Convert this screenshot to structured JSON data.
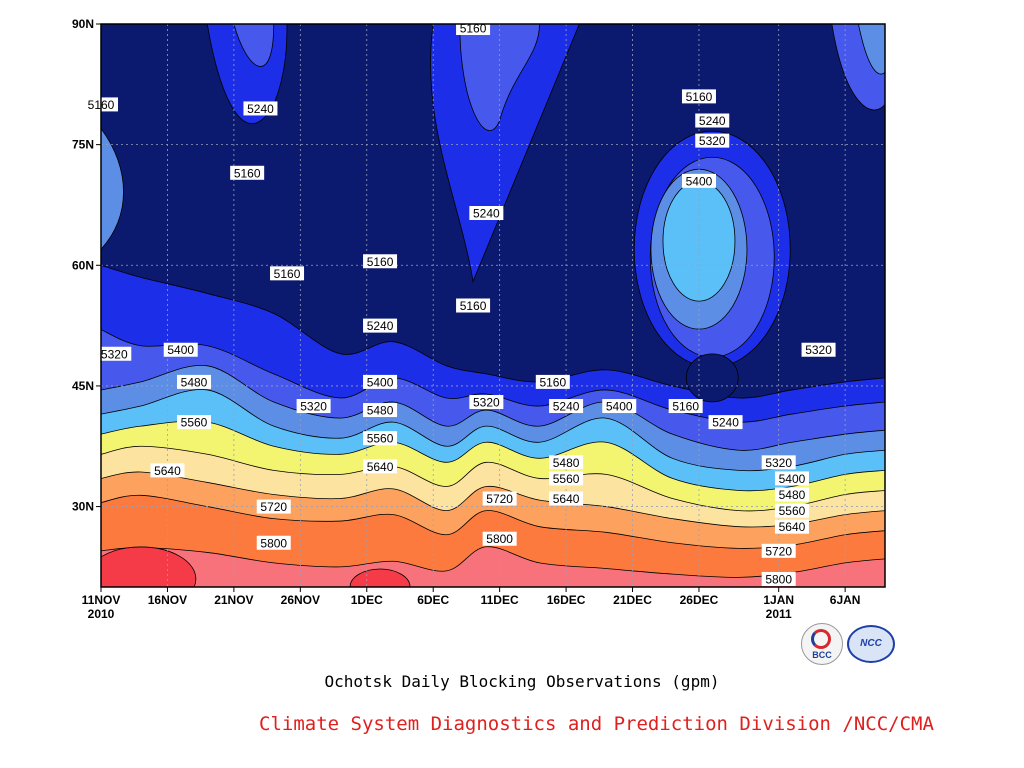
{
  "chart_data": {
    "type": "heatmap",
    "title": "Ochotsk Daily Blocking Observations (gpm)",
    "credit": "Climate System Diagnostics and Prediction Division /NCC/CMA",
    "logos": [
      "BCC",
      "NCC"
    ],
    "x_axis": {
      "range": [
        "2010-11-11",
        "2011-01-09"
      ],
      "ticks": [
        {
          "date": "2010-11-11",
          "label": "11NOV",
          "sublabel": "2010"
        },
        {
          "date": "2010-11-16",
          "label": "16NOV",
          "sublabel": ""
        },
        {
          "date": "2010-11-21",
          "label": "21NOV",
          "sublabel": ""
        },
        {
          "date": "2010-11-26",
          "label": "26NOV",
          "sublabel": ""
        },
        {
          "date": "2010-12-01",
          "label": "1DEC",
          "sublabel": ""
        },
        {
          "date": "2010-12-06",
          "label": "6DEC",
          "sublabel": ""
        },
        {
          "date": "2010-12-11",
          "label": "11DEC",
          "sublabel": ""
        },
        {
          "date": "2010-12-16",
          "label": "16DEC",
          "sublabel": ""
        },
        {
          "date": "2010-12-21",
          "label": "21DEC",
          "sublabel": ""
        },
        {
          "date": "2010-12-26",
          "label": "26DEC",
          "sublabel": ""
        },
        {
          "date": "2011-01-01",
          "label": "1JAN",
          "sublabel": "2011"
        },
        {
          "date": "2011-01-06",
          "label": "6JAN",
          "sublabel": ""
        }
      ]
    },
    "y_axis": {
      "range": [
        20,
        90
      ],
      "ticks": [
        {
          "value": 30,
          "label": "30N"
        },
        {
          "value": 45,
          "label": "45N"
        },
        {
          "value": 60,
          "label": "60N"
        },
        {
          "value": 75,
          "label": "75N"
        },
        {
          "value": 90,
          "label": "90N"
        }
      ]
    },
    "grid": true,
    "contour_levels": [
      5160,
      5240,
      5320,
      5400,
      5480,
      5560,
      5640,
      5720,
      5800
    ],
    "fill_colors": [
      {
        "below": 5160,
        "color": "#0b1a6e"
      },
      {
        "below": 5240,
        "color": "#1c2ee8"
      },
      {
        "below": 5320,
        "color": "#4758ec"
      },
      {
        "below": 5400,
        "color": "#5c8ee6"
      },
      {
        "below": 5480,
        "color": "#5bc0f8"
      },
      {
        "below": 5560,
        "color": "#f3f570"
      },
      {
        "below": 5640,
        "color": "#fde3a0"
      },
      {
        "below": 5720,
        "color": "#fca25e"
      },
      {
        "below": 5800,
        "color": "#fc7a3e"
      },
      {
        "below": 5880,
        "color": "#f7727a"
      },
      {
        "below": 99999,
        "color": "#f53a48"
      }
    ],
    "isolines": [
      {
        "level": 5800,
        "points": [
          [
            "2010-11-11",
            24.5
          ],
          [
            "2010-11-14",
            24.9
          ],
          [
            "2010-11-19",
            24.3
          ],
          [
            "2010-11-24",
            23.0
          ],
          [
            "2010-11-29",
            22.5
          ],
          [
            "2010-12-03",
            23.2
          ],
          [
            "2010-12-07",
            22.0
          ],
          [
            "2010-12-10",
            25.0
          ],
          [
            "2010-12-14",
            23.0
          ],
          [
            "2010-12-19",
            22.3
          ],
          [
            "2010-12-24",
            21.6
          ],
          [
            "2010-12-29",
            21.2
          ],
          [
            "2011-01-02",
            21.8
          ],
          [
            "2011-01-06",
            23.0
          ],
          [
            "2011-01-09",
            23.5
          ]
        ]
      },
      {
        "level": 5720,
        "points": [
          [
            "2010-11-11",
            30.5
          ],
          [
            "2010-11-14",
            31.4
          ],
          [
            "2010-11-19",
            30.0
          ],
          [
            "2010-11-24",
            28.5
          ],
          [
            "2010-11-29",
            28.2
          ],
          [
            "2010-12-03",
            29.0
          ],
          [
            "2010-12-07",
            26.5
          ],
          [
            "2010-12-10",
            29.5
          ],
          [
            "2010-12-14",
            27.5
          ],
          [
            "2010-12-19",
            26.8
          ],
          [
            "2010-12-24",
            25.5
          ],
          [
            "2010-12-29",
            24.8
          ],
          [
            "2011-01-02",
            25.2
          ],
          [
            "2011-01-06",
            26.5
          ],
          [
            "2011-01-09",
            27.0
          ]
        ]
      },
      {
        "level": 5640,
        "points": [
          [
            "2010-11-11",
            33.5
          ],
          [
            "2010-11-14",
            34.3
          ],
          [
            "2010-11-19",
            33.0
          ],
          [
            "2010-11-24",
            31.5
          ],
          [
            "2010-11-29",
            31.0
          ],
          [
            "2010-12-03",
            32.2
          ],
          [
            "2010-12-07",
            29.5
          ],
          [
            "2010-12-10",
            32.5
          ],
          [
            "2010-12-14",
            30.8
          ],
          [
            "2010-12-19",
            30.0
          ],
          [
            "2010-12-24",
            28.5
          ],
          [
            "2010-12-29",
            27.5
          ],
          [
            "2011-01-02",
            27.8
          ],
          [
            "2011-01-06",
            29.0
          ],
          [
            "2011-01-09",
            29.5
          ]
        ]
      },
      {
        "level": 5560,
        "points": [
          [
            "2010-11-11",
            36.5
          ],
          [
            "2010-11-14",
            37.5
          ],
          [
            "2010-11-19",
            36.5
          ],
          [
            "2010-11-24",
            34.5
          ],
          [
            "2010-11-29",
            34.0
          ],
          [
            "2010-12-03",
            35.0
          ],
          [
            "2010-12-07",
            32.5
          ],
          [
            "2010-12-10",
            35.5
          ],
          [
            "2010-12-14",
            33.5
          ],
          [
            "2010-12-19",
            34.0
          ],
          [
            "2010-12-24",
            31.0
          ],
          [
            "2010-12-29",
            29.5
          ],
          [
            "2011-01-02",
            30.0
          ],
          [
            "2011-01-06",
            31.5
          ],
          [
            "2011-01-09",
            32.0
          ]
        ]
      },
      {
        "level": 5480,
        "points": [
          [
            "2010-11-11",
            39.0
          ],
          [
            "2010-11-14",
            40.0
          ],
          [
            "2010-11-19",
            40.5
          ],
          [
            "2010-11-24",
            37.5
          ],
          [
            "2010-11-29",
            36.5
          ],
          [
            "2010-12-03",
            38.0
          ],
          [
            "2010-12-07",
            35.5
          ],
          [
            "2010-12-10",
            38.0
          ],
          [
            "2010-12-14",
            36.0
          ],
          [
            "2010-12-19",
            38.0
          ],
          [
            "2010-12-24",
            33.5
          ],
          [
            "2010-12-29",
            32.0
          ],
          [
            "2011-01-02",
            32.5
          ],
          [
            "2011-01-06",
            34.0
          ],
          [
            "2011-01-09",
            34.5
          ]
        ]
      },
      {
        "level": 5400,
        "points": [
          [
            "2010-11-11",
            41.5
          ],
          [
            "2010-11-14",
            42.5
          ],
          [
            "2010-11-19",
            44.5
          ],
          [
            "2010-11-24",
            40.0
          ],
          [
            "2010-11-29",
            38.5
          ],
          [
            "2010-12-03",
            40.5
          ],
          [
            "2010-12-07",
            37.5
          ],
          [
            "2010-12-10",
            40.0
          ],
          [
            "2010-12-14",
            38.0
          ],
          [
            "2010-12-19",
            41.0
          ],
          [
            "2010-12-24",
            36.0
          ],
          [
            "2010-12-29",
            34.5
          ],
          [
            "2011-01-02",
            35.0
          ],
          [
            "2011-01-06",
            36.5
          ],
          [
            "2011-01-09",
            37.0
          ]
        ]
      },
      {
        "level": 5320,
        "points": [
          [
            "2010-11-11",
            44.5
          ],
          [
            "2010-11-14",
            45.5
          ],
          [
            "2010-11-19",
            47.5
          ],
          [
            "2010-11-24",
            43.0
          ],
          [
            "2010-11-29",
            41.0
          ],
          [
            "2010-12-03",
            43.0
          ],
          [
            "2010-12-07",
            40.0
          ],
          [
            "2010-12-10",
            42.0
          ],
          [
            "2010-12-14",
            40.0
          ],
          [
            "2010-12-19",
            43.0
          ],
          [
            "2010-12-24",
            39.0
          ],
          [
            "2010-12-29",
            37.0
          ],
          [
            "2011-01-02",
            38.0
          ],
          [
            "2011-01-06",
            39.0
          ],
          [
            "2011-01-09",
            39.5
          ]
        ]
      },
      {
        "level": 5240,
        "points": [
          [
            "2010-11-11",
            52.0
          ],
          [
            "2010-11-14",
            50.0
          ],
          [
            "2010-11-19",
            50.0
          ],
          [
            "2010-11-24",
            46.5
          ],
          [
            "2010-11-29",
            43.5
          ],
          [
            "2010-12-03",
            46.0
          ],
          [
            "2010-12-07",
            43.5
          ],
          [
            "2010-12-10",
            44.0
          ],
          [
            "2010-12-14",
            42.5
          ],
          [
            "2010-12-19",
            44.5
          ],
          [
            "2010-12-24",
            42.0
          ],
          [
            "2010-12-29",
            40.5
          ],
          [
            "2011-01-02",
            41.5
          ],
          [
            "2011-01-06",
            42.5
          ],
          [
            "2011-01-09",
            43.0
          ]
        ]
      },
      {
        "level": 5160,
        "points": [
          [
            "2010-11-11",
            60.0
          ],
          [
            "2010-11-14",
            58.5
          ],
          [
            "2010-11-19",
            56.5
          ],
          [
            "2010-11-24",
            54.0
          ],
          [
            "2010-11-29",
            49.0
          ],
          [
            "2010-12-03",
            50.5
          ],
          [
            "2010-12-07",
            47.5
          ],
          [
            "2010-12-10",
            46.5
          ],
          [
            "2010-12-14",
            45.5
          ],
          [
            "2010-12-19",
            47.0
          ],
          [
            "2010-12-24",
            45.0
          ],
          [
            "2010-12-29",
            43.5
          ],
          [
            "2011-01-02",
            44.5
          ],
          [
            "2011-01-06",
            45.5
          ],
          [
            "2011-01-09",
            46.0
          ]
        ]
      }
    ],
    "features": [
      {
        "kind": "ridge",
        "level": 5400,
        "center": [
          "2010-12-26",
          62
        ],
        "note": "closed high core near 26DEC"
      },
      {
        "kind": "trough",
        "level": 5160,
        "center": [
          "2010-12-27",
          46
        ],
        "note": "closed low near 27DEC"
      },
      {
        "kind": "ridge",
        "level": 5240,
        "center": [
          "2010-12-10",
          76
        ],
        "note": "northward 5240 tongue near 11DEC"
      },
      {
        "kind": "ridge",
        "level": 5240,
        "center": [
          "2010-11-22",
          84
        ],
        "note": "5240 tongue near 21NOV"
      }
    ],
    "contour_labels": [
      {
        "text": "5160",
        "x": "2010-11-11",
        "y": 80
      },
      {
        "text": "5240",
        "x": "2010-11-23",
        "y": 79.5
      },
      {
        "text": "5160",
        "x": "2010-11-22",
        "y": 71.5
      },
      {
        "text": "5160",
        "x": "2010-12-09",
        "y": 89.5
      },
      {
        "text": "5240",
        "x": "2010-12-10",
        "y": 66.5
      },
      {
        "text": "5160",
        "x": "2010-11-25",
        "y": 59
      },
      {
        "text": "5160",
        "x": "2010-12-02",
        "y": 60.5
      },
      {
        "text": "5160",
        "x": "2010-12-09",
        "y": 55
      },
      {
        "text": "5240",
        "x": "2010-12-02",
        "y": 52.5
      },
      {
        "text": "5320",
        "x": "2010-11-12",
        "y": 49
      },
      {
        "text": "5400",
        "x": "2010-11-17",
        "y": 49.5
      },
      {
        "text": "5480",
        "x": "2010-11-18",
        "y": 45.5
      },
      {
        "text": "5560",
        "x": "2010-11-18",
        "y": 40.5
      },
      {
        "text": "5640",
        "x": "2010-11-16",
        "y": 34.5
      },
      {
        "text": "5720",
        "x": "2010-11-24",
        "y": 30
      },
      {
        "text": "5800",
        "x": "2010-11-24",
        "y": 25.5
      },
      {
        "text": "5320",
        "x": "2010-11-27",
        "y": 42.5
      },
      {
        "text": "5400",
        "x": "2010-12-02",
        "y": 45.5
      },
      {
        "text": "5480",
        "x": "2010-12-02",
        "y": 42
      },
      {
        "text": "5560",
        "x": "2010-12-02",
        "y": 38.5
      },
      {
        "text": "5640",
        "x": "2010-12-02",
        "y": 35
      },
      {
        "text": "5320",
        "x": "2010-12-10",
        "y": 43
      },
      {
        "text": "5160",
        "x": "2010-12-15",
        "y": 45.5
      },
      {
        "text": "5240",
        "x": "2010-12-16",
        "y": 42.5
      },
      {
        "text": "5400",
        "x": "2010-12-20",
        "y": 42.5
      },
      {
        "text": "5480",
        "x": "2010-12-16",
        "y": 35.5
      },
      {
        "text": "5560",
        "x": "2010-12-16",
        "y": 33.5
      },
      {
        "text": "5640",
        "x": "2010-12-16",
        "y": 31
      },
      {
        "text": "5720",
        "x": "2010-12-11",
        "y": 31
      },
      {
        "text": "5800",
        "x": "2010-12-11",
        "y": 26
      },
      {
        "text": "5160",
        "x": "2010-12-26",
        "y": 81
      },
      {
        "text": "5240",
        "x": "2010-12-27",
        "y": 78
      },
      {
        "text": "5320",
        "x": "2010-12-27",
        "y": 75.5
      },
      {
        "text": "5400",
        "x": "2010-12-26",
        "y": 70.5
      },
      {
        "text": "5320",
        "x": "2011-01-04",
        "y": 49.5
      },
      {
        "text": "5160",
        "x": "2010-12-25",
        "y": 42.5
      },
      {
        "text": "5240",
        "x": "2010-12-28",
        "y": 40.5
      },
      {
        "text": "5320",
        "x": "2011-01-01",
        "y": 35.5
      },
      {
        "text": "5400",
        "x": "2011-01-02",
        "y": 33.5
      },
      {
        "text": "5480",
        "x": "2011-01-02",
        "y": 31.5
      },
      {
        "text": "5560",
        "x": "2011-01-02",
        "y": 29.5
      },
      {
        "text": "5640",
        "x": "2011-01-02",
        "y": 27.5
      },
      {
        "text": "5720",
        "x": "2011-01-01",
        "y": 24.5
      },
      {
        "text": "5800",
        "x": "2011-01-01",
        "y": 21
      }
    ]
  }
}
